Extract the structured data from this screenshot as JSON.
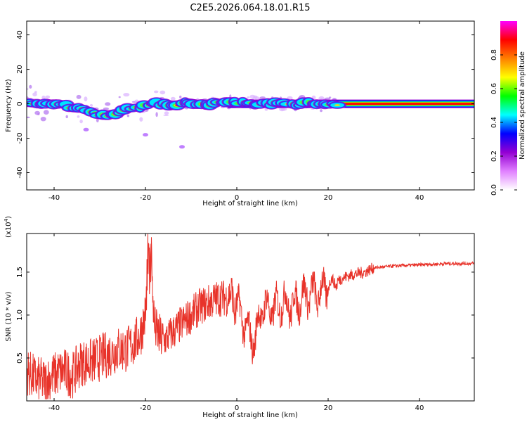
{
  "title": "C2E5.2026.064.18.01.R15",
  "chart_data": [
    {
      "type": "heatmap",
      "xlabel": "Height of straight line (km)",
      "ylabel": "Frequency (Hz)",
      "xlim": [
        -46,
        52
      ],
      "ylim": [
        -50,
        48
      ],
      "xticks": [
        -40,
        -20,
        0,
        20,
        40
      ],
      "yticks": [
        -40,
        -20,
        0,
        20,
        40
      ],
      "colorbar": {
        "label": "Normalized spectral amplitude",
        "range": [
          0,
          1
        ],
        "ticks": [
          "0.0",
          "0.2",
          "0.4",
          "0.6",
          "0.8"
        ],
        "colors": [
          "#ffffff",
          "#e080ff",
          "#9400d3",
          "#0000ff",
          "#00ffff",
          "#00ff00",
          "#ffff00",
          "#ff8000",
          "#ff0000",
          "#ff00ff"
        ]
      },
      "ridge": {
        "x": [
          -45,
          -42,
          -38,
          -35,
          -32,
          -29,
          -27,
          -25,
          -22,
          -18,
          -15,
          -10,
          -5,
          0,
          5,
          10,
          20,
          30,
          40,
          52
        ],
        "y": [
          1,
          0,
          -1,
          -2,
          -4,
          -7,
          -7,
          -4,
          -2,
          0,
          0,
          0,
          0,
          1,
          0,
          0,
          0,
          0,
          0,
          0
        ]
      },
      "outliers": [
        {
          "x": -12,
          "y": -25
        },
        {
          "x": -20,
          "y": -18
        },
        {
          "x": -33,
          "y": -15
        }
      ]
    },
    {
      "type": "line",
      "xlabel": "Height of straight line (km)",
      "ylabel": "SNR (10 * v/v)",
      "scale_label": "(x10",
      "scale_exp": "4",
      "scale_close": ")",
      "xlim": [
        -46,
        52
      ],
      "ylim": [
        0,
        1.95
      ],
      "xticks": [
        -40,
        -20,
        0,
        20,
        40
      ],
      "yticks": [
        0.5,
        1.0,
        1.5
      ],
      "ytick_labels": [
        "0.5",
        "1.0",
        "1.5"
      ],
      "series": [
        {
          "name": "SNR",
          "color": "#e8332a",
          "x": [
            -46,
            -44,
            -42,
            -40,
            -38,
            -36,
            -34,
            -32,
            -30,
            -28,
            -26,
            -24,
            -22,
            -21,
            -20,
            -19.5,
            -19,
            -18.5,
            -18,
            -17,
            -16,
            -14,
            -12,
            -10,
            -8,
            -6,
            -4,
            -2,
            -1,
            0,
            1,
            2,
            3,
            4,
            5,
            6,
            8,
            10,
            12,
            14,
            16,
            18,
            20,
            22,
            24,
            26,
            28,
            30,
            34,
            38,
            42,
            46,
            50,
            52
          ],
          "y": [
            0.35,
            0.25,
            0.22,
            0.3,
            0.35,
            0.3,
            0.45,
            0.45,
            0.5,
            0.55,
            0.6,
            0.6,
            0.7,
            0.8,
            1.0,
            1.6,
            1.5,
            1.3,
            0.85,
            0.75,
            0.7,
            0.8,
            0.9,
            1.0,
            1.1,
            1.15,
            1.2,
            1.2,
            1.3,
            1.1,
            1.0,
            0.85,
            0.75,
            0.7,
            1.0,
            1.1,
            1.05,
            1.15,
            1.1,
            1.2,
            1.25,
            1.25,
            1.35,
            1.4,
            1.45,
            1.48,
            1.5,
            1.55,
            1.57,
            1.58,
            1.59,
            1.6,
            1.6,
            1.6
          ]
        }
      ]
    }
  ]
}
